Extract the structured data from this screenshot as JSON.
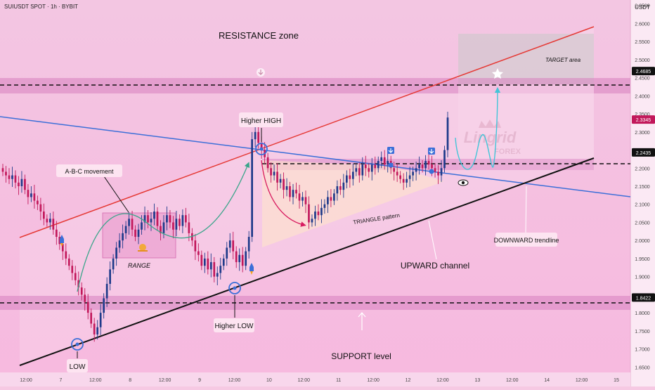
{
  "header": {
    "symbol_line": "SUIUSDT SPOT · 1h · BYBIT",
    "currency": "USDT"
  },
  "colors": {
    "background": "#f6c9e3",
    "candle_up": "#1e3a8a",
    "candle_down": "#c2185b",
    "resistance_line": "#e53935",
    "downward_trendline": "#3b6fd8",
    "support_line": "#111111",
    "projection": "#42c5d8",
    "curve": "#3aa58a",
    "zone_band": "#d77fc0",
    "marker_blue": "#3b6fd8"
  },
  "y_axis": {
    "ticks": [
      "2.6500",
      "2.6000",
      "2.5500",
      "2.5000",
      "2.4500",
      "2.4000",
      "2.3500",
      "2.3000",
      "2.2500",
      "2.2000",
      "2.1500",
      "2.1000",
      "2.0500",
      "2.0000",
      "1.9500",
      "1.9000",
      "1.8500",
      "1.8000",
      "1.7500",
      "1.7000",
      "1.6500"
    ],
    "price_tags": [
      {
        "label": "2.4685",
        "value": 2.4685,
        "color": "#111111"
      },
      {
        "label": "2.3345",
        "value": 2.3345,
        "color": "#c2185b"
      },
      {
        "label": "2.2435",
        "value": 2.2435,
        "color": "#111111"
      },
      {
        "label": "1.8422",
        "value": 1.8422,
        "color": "#111111"
      }
    ]
  },
  "x_axis": {
    "ticks": [
      "12:00",
      "7",
      "12:00",
      "8",
      "12:00",
      "9",
      "12:00",
      "10",
      "12:00",
      "11",
      "12:00",
      "12",
      "12:00",
      "13",
      "12:00",
      "14",
      "12:00",
      "15"
    ]
  },
  "annotations": {
    "resistance_zone": "RESISTANCE zone",
    "target_area": "TARGET area",
    "higher_high": "Higher HIGH",
    "abc_movement": "A-B-C movement",
    "range": "RANGE",
    "triangle": "TRIANGLE pattern",
    "upward_channel": "UPWARD channel",
    "downward_trendline": "DOWNWARD trendline",
    "higher_low": "Higher LOW",
    "low": "LOW",
    "support_level": "SUPPORT level",
    "watermark_main": "Lingrid",
    "watermark_sub": "FOREX"
  },
  "chart_data": {
    "type": "candlestick",
    "title": "SUIUSDT SPOT · 1h · BYBIT",
    "ylim": [
      1.635,
      2.665
    ],
    "ylabel": "USDT",
    "horizontal_levels": [
      2.4685,
      2.2435,
      1.8422
    ],
    "last_price": 2.3345,
    "close_series": [
      2.19,
      2.18,
      2.17,
      2.18,
      2.16,
      2.15,
      2.17,
      2.14,
      2.12,
      2.13,
      2.11,
      2.1,
      2.08,
      2.06,
      2.05,
      2.06,
      2.03,
      2.01,
      1.99,
      1.97,
      1.95,
      1.93,
      1.91,
      1.89,
      1.87,
      1.85,
      1.83,
      1.8,
      1.77,
      1.74,
      1.76,
      1.8,
      1.84,
      1.88,
      1.92,
      1.95,
      1.98,
      2.0,
      2.02,
      2.04,
      2.06,
      2.03,
      2.01,
      2.03,
      2.05,
      2.07,
      2.05,
      2.06,
      2.08,
      2.04,
      2.02,
      2.05,
      2.07,
      2.05,
      2.03,
      2.06,
      2.04,
      2.07,
      2.05,
      2.02,
      2.0,
      1.97,
      1.96,
      1.93,
      1.95,
      1.92,
      1.94,
      1.9,
      1.91,
      1.93,
      1.95,
      1.98,
      2.0,
      1.97,
      1.94,
      1.96,
      1.93,
      1.97,
      2.01,
      2.28,
      2.3,
      2.27,
      2.25,
      2.23,
      2.2,
      2.18,
      2.19,
      2.16,
      2.17,
      2.14,
      2.15,
      2.12,
      2.14,
      2.13,
      2.11,
      2.12,
      2.1,
      2.05,
      2.06,
      2.08,
      2.07,
      2.09,
      2.1,
      2.12,
      2.11,
      2.13,
      2.15,
      2.14,
      2.16,
      2.18,
      2.17,
      2.19,
      2.2,
      2.18,
      2.21,
      2.2,
      2.19,
      2.21,
      2.2,
      2.22,
      2.23,
      2.21,
      2.22,
      2.2,
      2.19,
      2.18,
      2.17,
      2.16,
      2.17,
      2.18,
      2.19,
      2.2,
      2.21,
      2.2,
      2.22,
      2.21,
      2.2,
      2.19,
      2.18,
      2.2,
      2.25,
      2.34
    ]
  }
}
